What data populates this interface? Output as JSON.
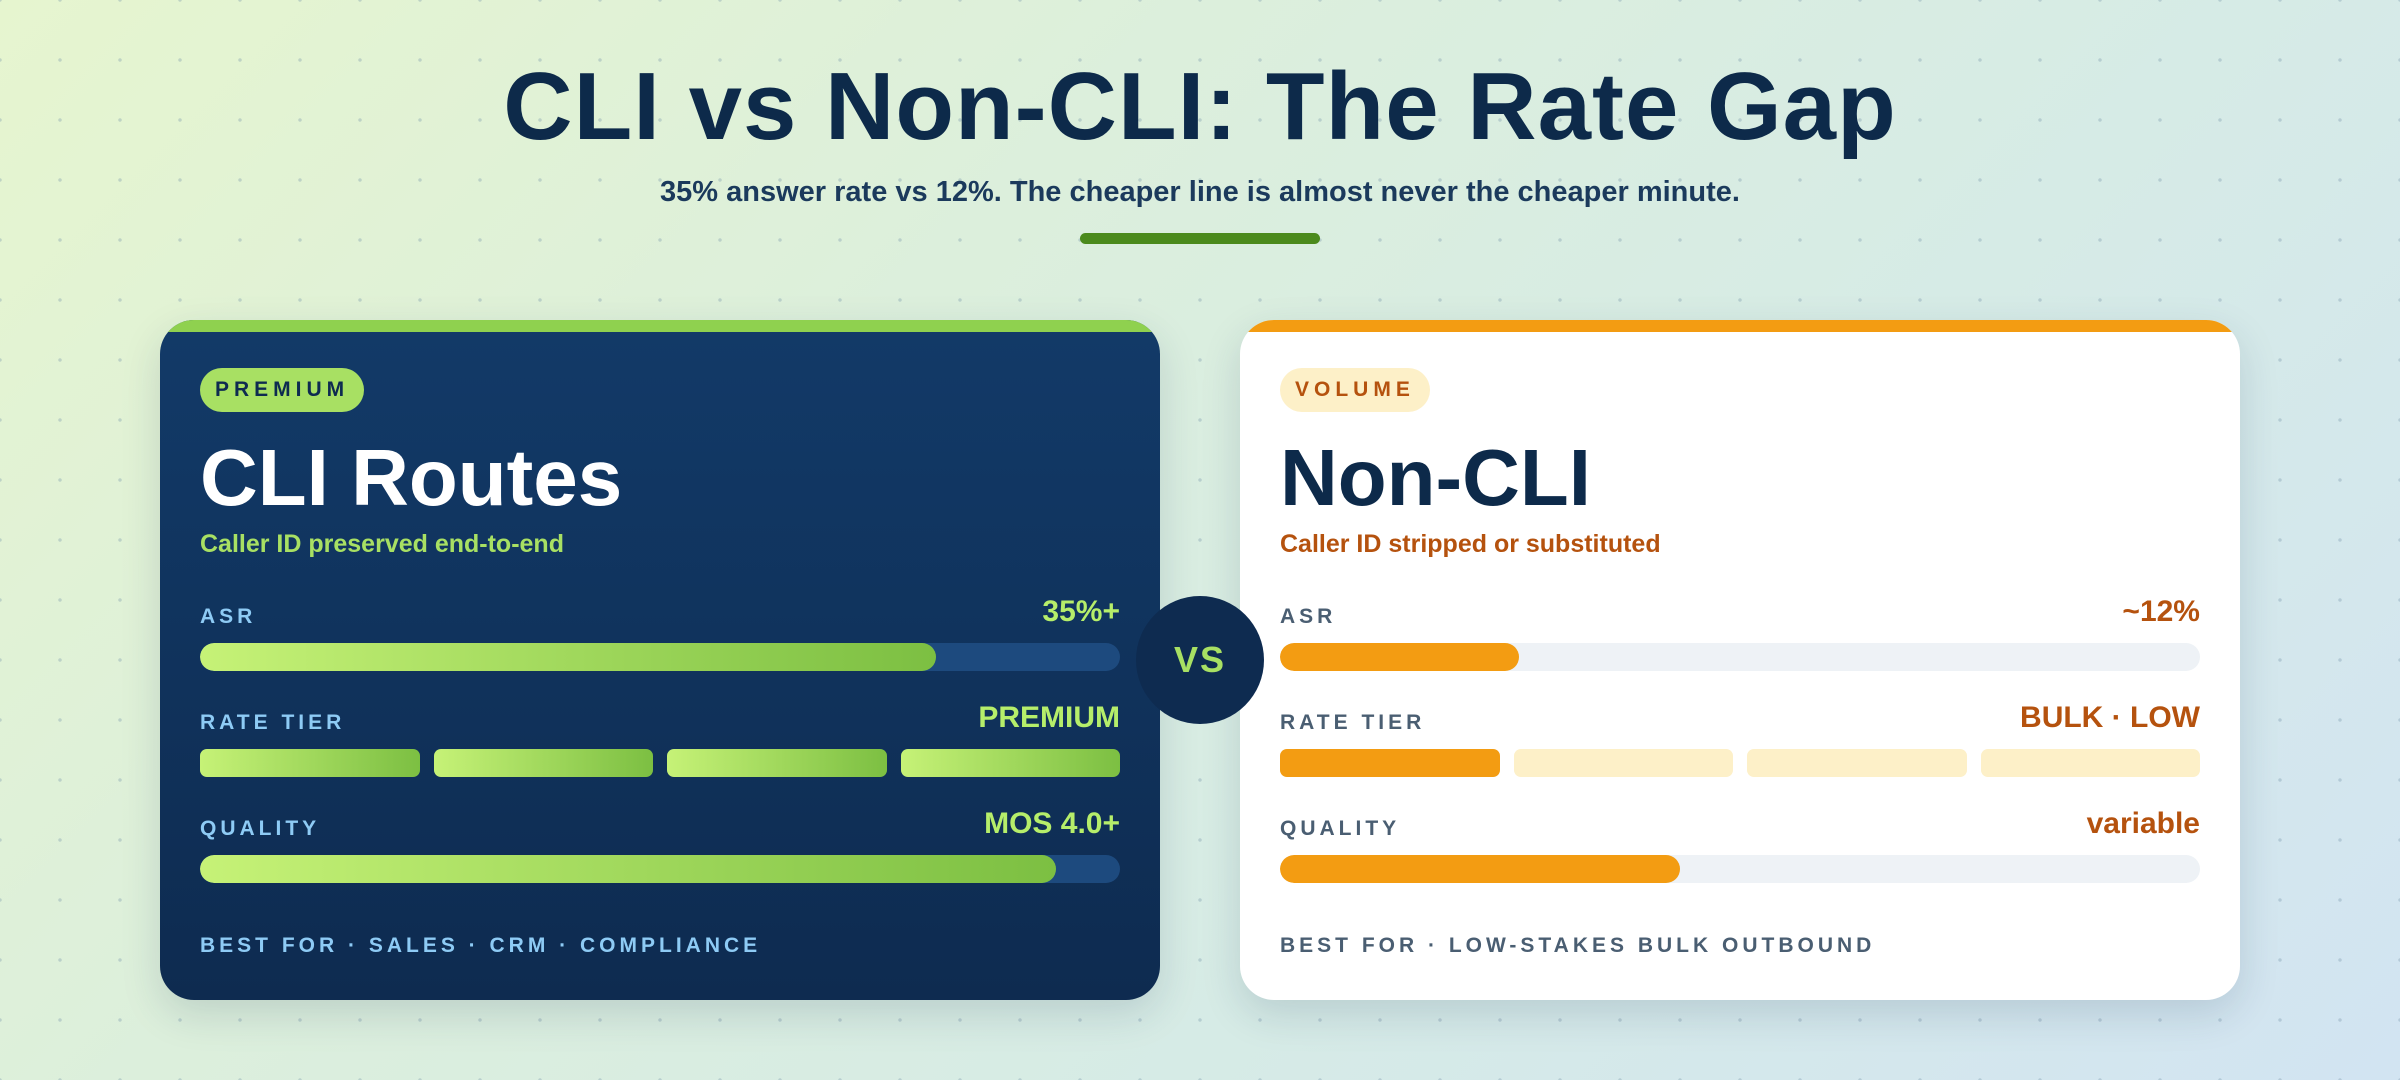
{
  "header": {
    "title": "CLI vs Non-CLI: The Rate Gap",
    "subtitle": "35% answer rate vs 12%. The cheaper line is almost never the cheaper minute."
  },
  "vs_label": "VS",
  "cards": [
    {
      "pill": "PREMIUM",
      "title": "CLI Routes",
      "subtitle": "Caller ID preserved end-to-end",
      "accent_color": "#8fd14f",
      "metrics": [
        {
          "label": "ASR",
          "value": "35%+",
          "fill_fraction": 0.8
        },
        {
          "label": "RATE TIER",
          "value": "PREMIUM",
          "segments_on": 4,
          "segments_total": 4
        },
        {
          "label": "QUALITY",
          "value": "MOS 4.0+",
          "fill_fraction": 0.93
        }
      ],
      "best_for": "BEST FOR · SALES · CRM · COMPLIANCE"
    },
    {
      "pill": "VOLUME",
      "title": "Non-CLI",
      "subtitle": "Caller ID stripped or substituted",
      "accent_color": "#f39c12",
      "metrics": [
        {
          "label": "ASR",
          "value": "~12%",
          "fill_fraction": 0.26
        },
        {
          "label": "RATE TIER",
          "value": "BULK · LOW",
          "segments_on": 1,
          "segments_total": 4
        },
        {
          "label": "QUALITY",
          "value": "variable",
          "fill_fraction": 0.435
        }
      ],
      "best_for": "BEST FOR · LOW-STAKES BULK OUTBOUND"
    }
  ]
}
